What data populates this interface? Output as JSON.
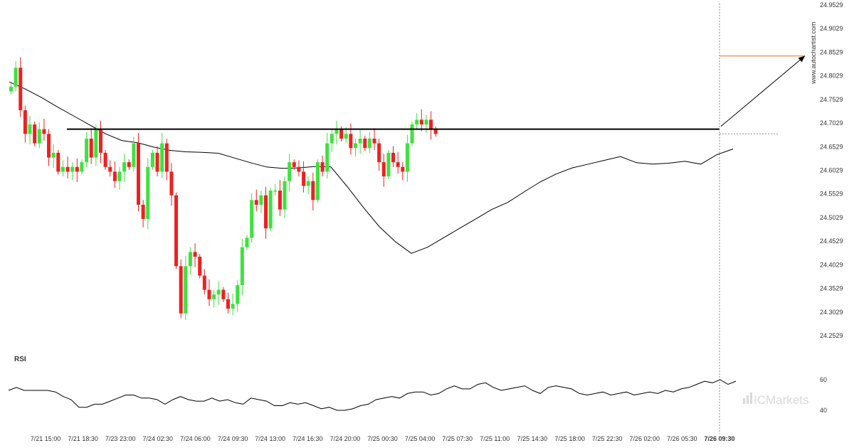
{
  "chart_data": [
    {
      "type": "candlestick",
      "y_ticks": [
        "24.9529",
        "24.9029",
        "24.8529",
        "24.8029",
        "24.7529",
        "24.7029",
        "24.6529",
        "24.6029",
        "24.5529",
        "24.5029",
        "24.4529",
        "24.4029",
        "24.3529",
        "24.3029",
        "24.2529"
      ],
      "ylim": [
        24.2529,
        24.9529
      ],
      "x_ticks": [
        "7/21 15:00",
        "7/21 18:30",
        "7/23 23:00",
        "7/24 02:30",
        "7/24 06:00",
        "7/24 09:30",
        "7/24 13:00",
        "7/24 16:30",
        "7/24 20:00",
        "7/25 00:30",
        "7/25 04:00",
        "7/25 07:30",
        "7/25 11:00",
        "7/25 14:30",
        "7/25 18:00",
        "7/25 22:30",
        "7/26 02:00",
        "7/26 05:30",
        "7/26 09:30"
      ],
      "watermark": "www.autochartist.com",
      "resistance_level": 24.69,
      "projected_target": 24.845,
      "colors": {
        "up": "#3ee23e",
        "down": "#ee2020",
        "line": "#000000",
        "target": "#f07a30"
      },
      "moving_average": [
        24.79,
        24.775,
        24.757,
        24.737,
        24.718,
        24.699,
        24.68,
        24.666,
        24.661,
        24.652,
        24.645,
        24.642,
        24.641,
        24.639,
        24.629,
        24.619,
        24.61,
        24.607,
        24.608,
        24.611,
        24.61,
        24.569,
        24.525,
        24.484,
        24.452,
        24.427,
        24.44,
        24.46,
        24.48,
        24.5,
        24.52,
        24.535,
        24.557,
        24.578,
        24.595,
        24.608,
        24.616,
        24.624,
        24.632,
        24.619,
        24.616,
        24.618,
        24.622,
        24.616,
        24.636,
        24.648
      ],
      "closes": [
        24.78,
        24.82,
        24.73,
        24.68,
        24.7,
        24.66,
        24.69,
        24.68,
        24.63,
        24.64,
        24.6,
        24.61,
        24.6,
        24.61,
        24.6,
        24.62,
        24.67,
        24.63,
        24.69,
        24.64,
        24.61,
        24.6,
        24.58,
        24.6,
        24.62,
        24.61,
        24.66,
        24.53,
        24.5,
        24.61,
        24.64,
        24.6,
        24.66,
        24.6,
        24.55,
        24.4,
        24.3,
        24.4,
        24.43,
        24.42,
        24.38,
        24.35,
        24.33,
        24.34,
        24.35,
        24.33,
        24.31,
        24.32,
        24.36,
        24.44,
        24.46,
        24.54,
        24.53,
        24.55,
        24.48,
        24.56,
        24.56,
        24.52,
        24.58,
        24.62,
        24.61,
        24.6,
        24.57,
        24.58,
        24.54,
        24.62,
        24.6,
        24.66,
        24.68,
        24.69,
        24.67,
        24.68,
        24.65,
        24.66,
        24.67,
        24.65,
        24.67,
        24.66,
        24.62,
        24.59,
        24.64,
        24.62,
        24.61,
        24.6,
        24.66,
        24.7,
        24.71,
        24.7,
        24.71,
        24.69,
        24.68
      ]
    },
    {
      "type": "line",
      "title": "RSI",
      "y_ticks": [
        "60",
        "40"
      ],
      "ylim": [
        40,
        60
      ],
      "values": [
        53,
        55,
        53,
        53,
        53,
        53,
        52,
        49,
        47,
        42,
        42,
        44,
        44,
        46,
        48,
        50,
        50,
        48,
        48,
        47,
        44,
        47,
        49,
        47,
        46,
        46,
        48,
        46,
        47,
        45,
        44,
        48,
        47,
        46,
        43,
        43,
        45,
        44,
        45,
        43,
        41,
        42,
        40,
        40,
        41,
        43,
        44,
        47,
        48,
        49,
        48,
        51,
        52,
        52,
        50,
        51,
        54,
        56,
        54,
        54,
        57,
        58,
        55,
        53,
        54,
        55,
        56,
        53,
        51,
        55,
        56,
        55,
        54,
        51,
        50,
        51,
        52,
        50,
        51,
        52,
        50,
        51,
        52,
        51,
        53,
        52,
        54,
        55,
        57,
        59,
        58,
        60,
        57,
        59
      ]
    },
    {
      "type": "logo",
      "text": "ICMarkets"
    }
  ]
}
